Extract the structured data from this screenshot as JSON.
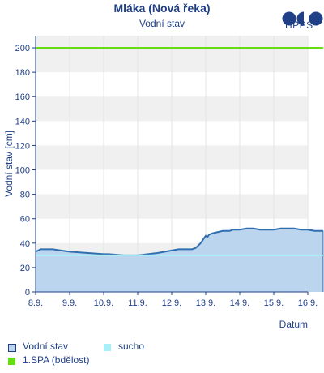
{
  "chart_data": {
    "type": "area",
    "title": "Mláka (Nová řeka)",
    "subtitle": "Vodní stav",
    "ylabel": "Vodní stav [cm]",
    "xlabel": "Datum",
    "ylim": [
      0,
      210
    ],
    "yticks": [
      0,
      20,
      40,
      60,
      80,
      100,
      120,
      140,
      160,
      180,
      200
    ],
    "xlim": [
      "2024-09-08",
      "2024-09-16"
    ],
    "xticks": [
      "8.9.",
      "9.9.",
      "10.9.",
      "11.9.",
      "12.9.",
      "13.9.",
      "14.9.",
      "15.9.",
      "16.9."
    ],
    "grid": true,
    "legend_position": "bottom-left",
    "colors": {
      "water_level_line": "#2f6fb0",
      "water_level_fill": "#bcd5ee",
      "drought": "#a8f0f7",
      "spa1": "#66dd11",
      "band": "#f0f0f0",
      "axis": "#1f3f86"
    },
    "series": [
      {
        "name": "Vodní stav",
        "x": [
          8.0,
          8.15,
          8.5,
          9.0,
          9.5,
          10.0,
          10.15,
          10.6,
          11.0,
          11.3,
          11.6,
          11.8,
          12.0,
          12.2,
          12.4,
          12.5,
          12.6,
          12.7,
          12.78,
          12.85,
          12.9,
          12.95,
          13.0,
          13.05,
          13.1,
          13.2,
          13.35,
          13.5,
          13.7,
          13.8,
          14.0,
          14.2,
          14.4,
          14.6,
          14.8,
          15.0,
          15.2,
          15.4,
          15.6,
          15.8,
          16.0,
          16.2,
          16.45
        ],
        "y": [
          33,
          35,
          35,
          33,
          32,
          31,
          31,
          30,
          30,
          31,
          32,
          33,
          34,
          35,
          35,
          35,
          35,
          36,
          38,
          40,
          42,
          44,
          46,
          45,
          47,
          48,
          49,
          50,
          50,
          51,
          51,
          52,
          52,
          51,
          51,
          51,
          52,
          52,
          52,
          51,
          51,
          50,
          50
        ]
      },
      {
        "name": "sucho",
        "constant": 30,
        "x_range": [
          8.0,
          16.45
        ]
      },
      {
        "name": "1.SPA (bdělost)",
        "constant": 200,
        "x_range": [
          8.0,
          16.45
        ]
      }
    ]
  },
  "logo": {
    "text": "HPPS"
  },
  "legend": {
    "items": [
      {
        "label": "Vodní stav",
        "color": "#bcd5ee",
        "border": "#1f3f86"
      },
      {
        "label": "sucho",
        "color": "#a8f0f7",
        "border": "#a8f0f7"
      },
      {
        "label": "1.SPA (bdělost)",
        "color": "#66dd11",
        "border": "#66dd11"
      }
    ]
  }
}
